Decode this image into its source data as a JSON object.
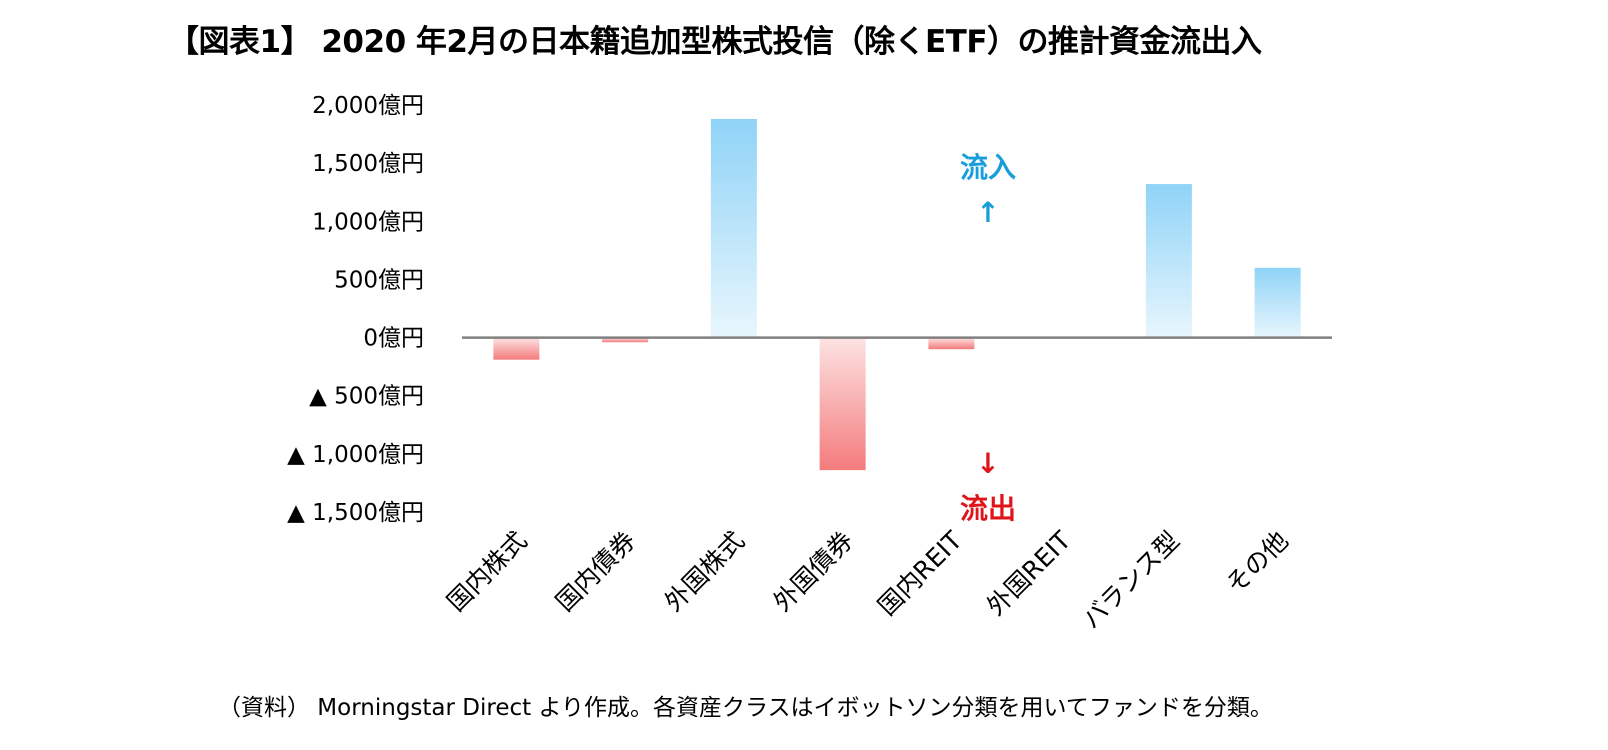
{
  "title": "【図表1】 2020 年2月の日本籍追加型株式投信（除くETF）の推計資金流出入",
  "source": "（資料） Morningstar Direct より作成。各資産クラスはイボットソン分類を用いてファンドを分類。",
  "colors": {
    "inflow_top": "#8fd3f7",
    "inflow_bottom": "#e8f6fd",
    "outflow_top": "#fde3e3",
    "outflow_bottom": "#f47b7d",
    "zero_line": "#808080",
    "annotation_in": "#1a9ed9",
    "annotation_out": "#e0151b"
  },
  "chart_data": {
    "type": "bar",
    "categories": [
      "国内株式",
      "国内債券",
      "外国株式",
      "外国債券",
      "国内REIT",
      "外国REIT",
      "バランス型",
      "その他"
    ],
    "values": [
      -190,
      -40,
      1880,
      -1140,
      -100,
      0,
      1320,
      600
    ],
    "ylim": [
      -1500,
      2000
    ],
    "yticks": [
      2000,
      1500,
      1000,
      500,
      0,
      -500,
      -1000,
      -1500
    ],
    "ytick_labels": [
      "2,000億円",
      "1,500億円",
      "1,000億円",
      "500億円",
      "0億円",
      "▲ 500億円",
      "▲ 1,000億円",
      "▲ 1,500億円"
    ],
    "grid": false,
    "annotations": {
      "inflow_label": "流入",
      "inflow_arrow": "↑",
      "outflow_label": "流出",
      "outflow_arrow": "↓"
    }
  }
}
